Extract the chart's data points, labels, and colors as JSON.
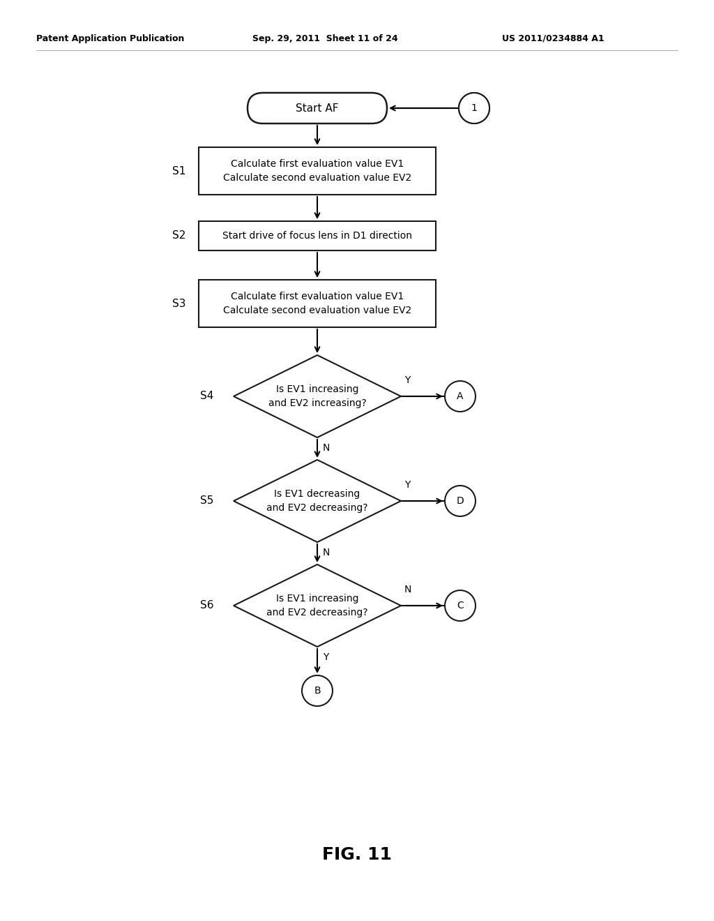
{
  "bg_color": "#ffffff",
  "header_left": "Patent Application Publication",
  "header_mid": "Sep. 29, 2011  Sheet 11 of 24",
  "header_right": "US 2011/0234884 A1",
  "fig_label": "FIG. 11",
  "start_text": "Start AF",
  "circle1_label": "1",
  "s1_label": "S1",
  "s1_text": "Calculate first evaluation value EV1\nCalculate second evaluation value EV2",
  "s2_label": "S2",
  "s2_text": "Start drive of focus lens in D1 direction",
  "s3_label": "S3",
  "s3_text": "Calculate first evaluation value EV1\nCalculate second evaluation value EV2",
  "s4_label": "S4",
  "s4_text": "Is EV1 increasing\nand EV2 increasing?",
  "s4_yes": "Y",
  "s4_circle": "A",
  "s4_no": "N",
  "s5_label": "S5",
  "s5_text": "Is EV1 decreasing\nand EV2 decreasing?",
  "s5_yes": "Y",
  "s5_circle": "D",
  "s5_no": "N",
  "s6_label": "S6",
  "s6_text": "Is EV1 increasing\nand EV2 decreasing?",
  "s6_no": "N",
  "s6_circle": "C",
  "s6_yes": "Y",
  "s6_bottom_circle": "B",
  "line_color": "#000000",
  "text_color": "#000000",
  "box_face": "#ffffff",
  "box_edge": "#1a1a1a",
  "header_fontsize": 9,
  "label_fontsize": 11,
  "text_fontsize": 10,
  "figlabel_fontsize": 18
}
